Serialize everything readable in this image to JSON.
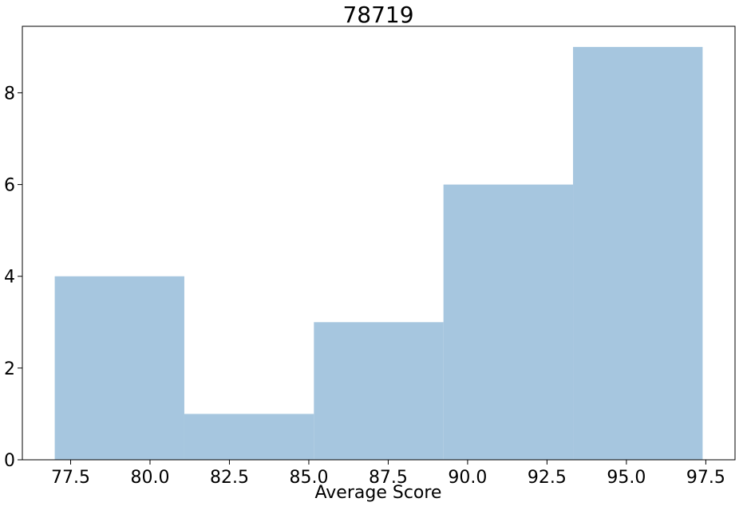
{
  "chart_data": {
    "type": "bar",
    "title": "78719",
    "xlabel": "Average Score",
    "ylabel": "",
    "bins": [
      {
        "start": 77.0,
        "end": 81.08,
        "count": 4
      },
      {
        "start": 81.08,
        "end": 85.16,
        "count": 1
      },
      {
        "start": 85.16,
        "end": 89.24,
        "count": 3
      },
      {
        "start": 89.24,
        "end": 93.32,
        "count": 6
      },
      {
        "start": 93.32,
        "end": 97.4,
        "count": 9
      }
    ],
    "xlim": [
      75.98,
      98.42
    ],
    "ylim": [
      0,
      9.45
    ],
    "xticks": [
      77.5,
      80.0,
      82.5,
      85.0,
      87.5,
      90.0,
      92.5,
      95.0,
      97.5
    ],
    "xtick_labels": [
      "77.5",
      "80.0",
      "82.5",
      "85.0",
      "87.5",
      "90.0",
      "92.5",
      "95.0",
      "97.5"
    ],
    "yticks": [
      0,
      2,
      4,
      6,
      8
    ],
    "ytick_labels": [
      "0",
      "2",
      "4",
      "6",
      "8"
    ],
    "bar_color": "#a6c6df",
    "grid": false,
    "legend": "none"
  }
}
